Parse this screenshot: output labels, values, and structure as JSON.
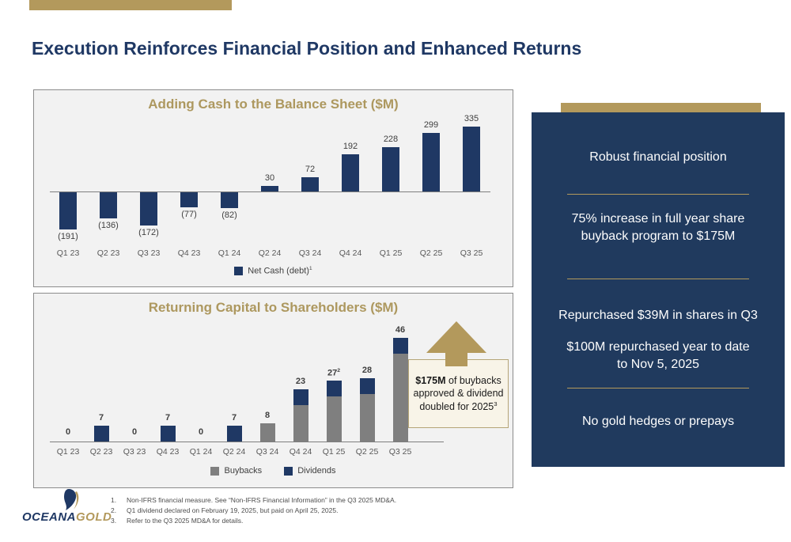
{
  "slide": {
    "title": "Execution Reinforces Financial Position and Enhanced Returns"
  },
  "chart_data": [
    {
      "type": "bar",
      "title": "Adding Cash to the Balance Sheet ($M)",
      "categories": [
        "Q1 23",
        "Q2 23",
        "Q3 23",
        "Q4 23",
        "Q1 24",
        "Q2 24",
        "Q3 24",
        "Q4 24",
        "Q1 25",
        "Q2 25",
        "Q3 25"
      ],
      "values": [
        -191,
        -136,
        -172,
        -77,
        -82,
        30,
        72,
        192,
        228,
        299,
        335
      ],
      "labels": [
        "(191)",
        "(136)",
        "(172)",
        "(77)",
        "(82)",
        "30",
        "72",
        "192",
        "228",
        "299",
        "335"
      ],
      "label_sups": [
        "",
        "",
        "",
        "",
        "",
        "",
        "",
        "",
        "",
        "",
        ""
      ],
      "bar_color": "#1F3864",
      "xlabel": "",
      "ylabel": "",
      "grid": "off",
      "legend_position": "bottom-center",
      "legend": [
        {
          "label": "Net Cash (debt)",
          "sup": "1",
          "color": "#1F3864"
        }
      ]
    },
    {
      "type": "bar",
      "subtype": "stacked",
      "title": "Returning Capital to Shareholders ($M)",
      "categories": [
        "Q1 23",
        "Q2 23",
        "Q3 23",
        "Q4 23",
        "Q1 24",
        "Q2 24",
        "Q3 24",
        "Q4 24",
        "Q1 25",
        "Q2 25",
        "Q3 25"
      ],
      "series": [
        {
          "name": "Buybacks",
          "color": "#7F7F7F",
          "values": [
            0,
            0,
            0,
            0,
            0,
            0,
            8,
            16,
            20,
            21,
            39
          ]
        },
        {
          "name": "Dividends",
          "color": "#1F3864",
          "values": [
            0,
            7,
            0,
            7,
            0,
            7,
            0,
            7,
            7,
            7,
            7
          ]
        }
      ],
      "total_labels": [
        "0",
        "7",
        "0",
        "7",
        "0",
        "7",
        "8",
        "23",
        "27",
        "28",
        "46"
      ],
      "label_sups": [
        "",
        "",
        "",
        "",
        "",
        "",
        "",
        "",
        "2",
        "",
        ""
      ],
      "xlabel": "",
      "ylabel": "",
      "grid": "off",
      "legend_position": "bottom-center",
      "callout": {
        "bold": "$175M",
        "rest": " of buybacks\napproved & dividend\ndoubled for 2025",
        "sup": "3",
        "arrow": "up",
        "arrow_color": "#B3995C"
      }
    }
  ],
  "right_panel": {
    "items": [
      "Robust financial position",
      "75% increase in full year share\nbuyback program to $175M",
      "Repurchased $39M in shares in Q3",
      "$100M repurchased year to date\nto Nov 5, 2025",
      "No gold hedges or prepays"
    ]
  },
  "footer": {
    "logo_part1": "OCEANA",
    "logo_part2": "GOLD",
    "footnotes": [
      {
        "num": "1.",
        "text": "Non-IFRS financial measure. See “Non-IFRS Financial Information” in the Q3 2025 MD&A."
      },
      {
        "num": "2.",
        "text": "Q1 dividend declared on February 19, 2025, but paid on April 25, 2025."
      },
      {
        "num": "3.",
        "text": "Refer to the Q3 2025 MD&A for details."
      }
    ]
  },
  "colors": {
    "navy_bar": "#1F3864",
    "panel_navy": "#203A5E",
    "gold": "#B3995C",
    "gray_bar": "#7F7F7F",
    "chart_bg": "#F2F2F2"
  }
}
